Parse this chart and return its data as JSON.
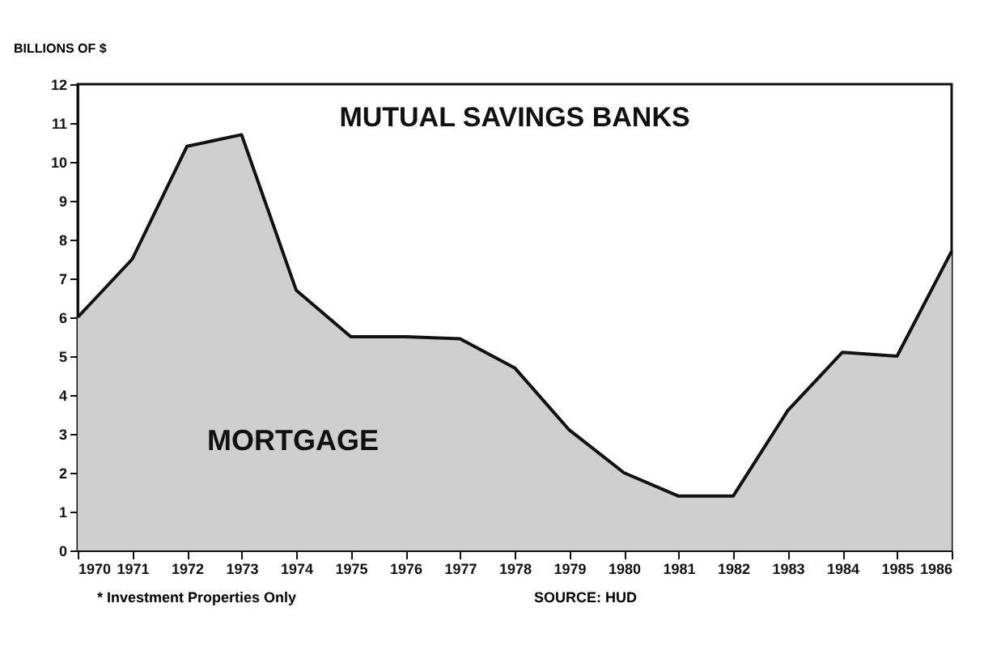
{
  "chart_data": {
    "type": "area",
    "title": "MUTUAL SAVINGS BANKS",
    "ylabel": "BILLIONS OF $",
    "annotations": [
      "MORTGAGE",
      "* Investment Properties Only",
      "SOURCE: HUD"
    ],
    "x": [
      1970,
      1971,
      1972,
      1973,
      1974,
      1975,
      1976,
      1977,
      1978,
      1979,
      1980,
      1981,
      1982,
      1983,
      1984,
      1985,
      1986
    ],
    "series": [
      {
        "color": "#cfcfcf",
        "values": [
          6.0,
          7.5,
          10.4,
          10.7,
          6.7,
          5.5,
          5.5,
          5.45,
          4.7,
          3.1,
          2.0,
          1.4,
          1.4,
          3.6,
          5.1,
          5.0,
          7.7
        ]
      }
    ],
    "xlim": [
      1970,
      1986
    ],
    "xticks": [
      1970,
      1971,
      1972,
      1973,
      1974,
      1975,
      1976,
      1977,
      1978,
      1979,
      1980,
      1981,
      1982,
      1983,
      1984,
      1985,
      1986
    ],
    "ylim": [
      0,
      12
    ],
    "yticks": [
      0,
      1,
      2,
      3,
      4,
      5,
      6,
      7,
      8,
      9,
      10,
      11,
      12
    ],
    "grid": false
  }
}
